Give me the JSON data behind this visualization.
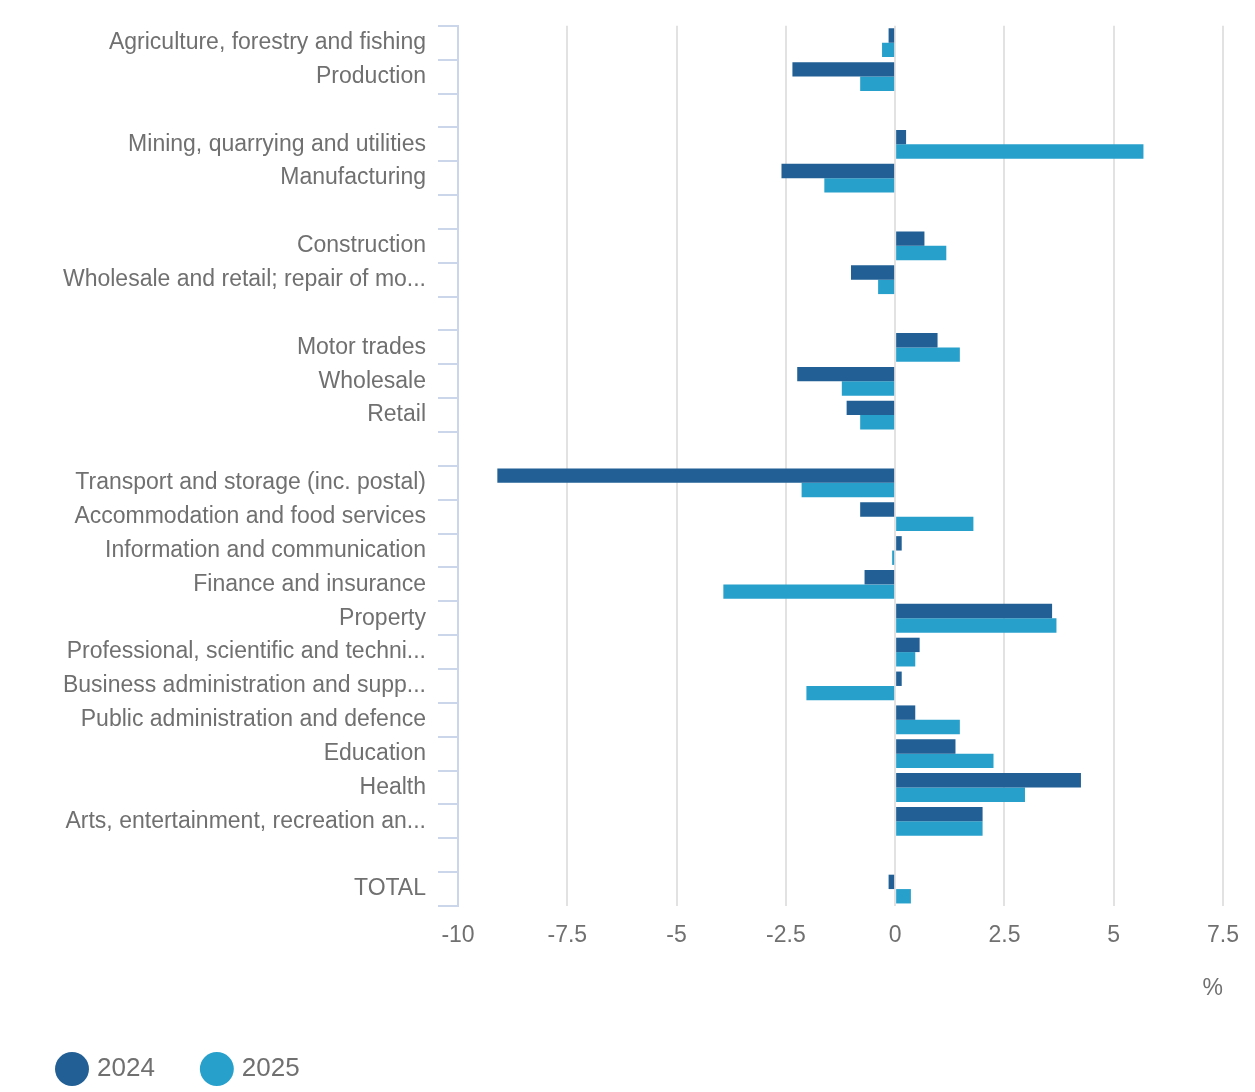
{
  "chart_data": {
    "type": "bar",
    "orientation": "horizontal",
    "xlabel": "%",
    "categories": [
      "Agriculture, forestry and fishing",
      "Production",
      null,
      "Mining, quarrying and utilities",
      "Manufacturing",
      null,
      "Construction",
      "Wholesale and retail; repair of mo...",
      null,
      "Motor trades",
      "Wholesale",
      "Retail",
      null,
      "Transport and storage (inc. postal)",
      "Accommodation and food services",
      "Information and communication",
      "Finance and insurance",
      "Property",
      "Professional, scientific and techni...",
      "Business administration and supp...",
      "Public administration and defence",
      "Education",
      "Health",
      "Arts, entertainment, recreation an...",
      null,
      "TOTAL"
    ],
    "series": [
      {
        "name": "2024",
        "color": "#215f95",
        "values": [
          -0.15,
          -2.35,
          null,
          0.25,
          -2.6,
          null,
          0.67,
          -1.01,
          null,
          0.97,
          -2.24,
          -1.11,
          null,
          -9.1,
          -0.8,
          0.15,
          -0.7,
          3.59,
          0.56,
          0.15,
          0.46,
          1.38,
          4.25,
          2.0,
          null,
          -0.15
        ]
      },
      {
        "name": "2025",
        "color": "#27a0cc",
        "values": [
          -0.3,
          -0.8,
          null,
          5.68,
          -1.62,
          null,
          1.17,
          -0.39,
          null,
          1.48,
          -1.22,
          -0.8,
          null,
          -2.14,
          1.79,
          -0.03,
          -3.93,
          3.69,
          0.46,
          -2.03,
          1.48,
          2.25,
          2.97,
          2.0,
          null,
          0.36
        ]
      }
    ],
    "xlim": [
      -10,
      7.5
    ],
    "xticks": [
      -10,
      -7.5,
      -5,
      -2.5,
      0,
      2.5,
      5,
      7.5
    ],
    "grid": "x",
    "legend": "bottom left"
  }
}
